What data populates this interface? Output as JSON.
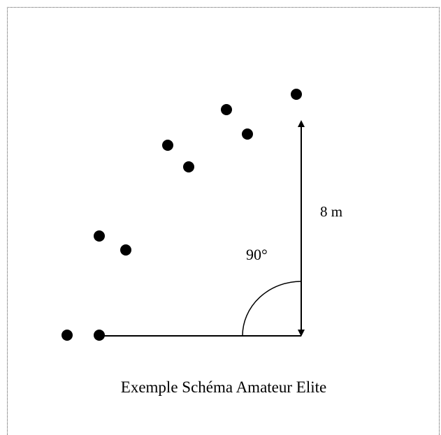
{
  "diagram": {
    "distance_label": "8 m",
    "angle_label": "90°",
    "caption": "Exemple Schéma Amateur Elite"
  },
  "colors": {
    "ink": "#000000",
    "frame_border": "#555555",
    "background": "#ffffff"
  }
}
